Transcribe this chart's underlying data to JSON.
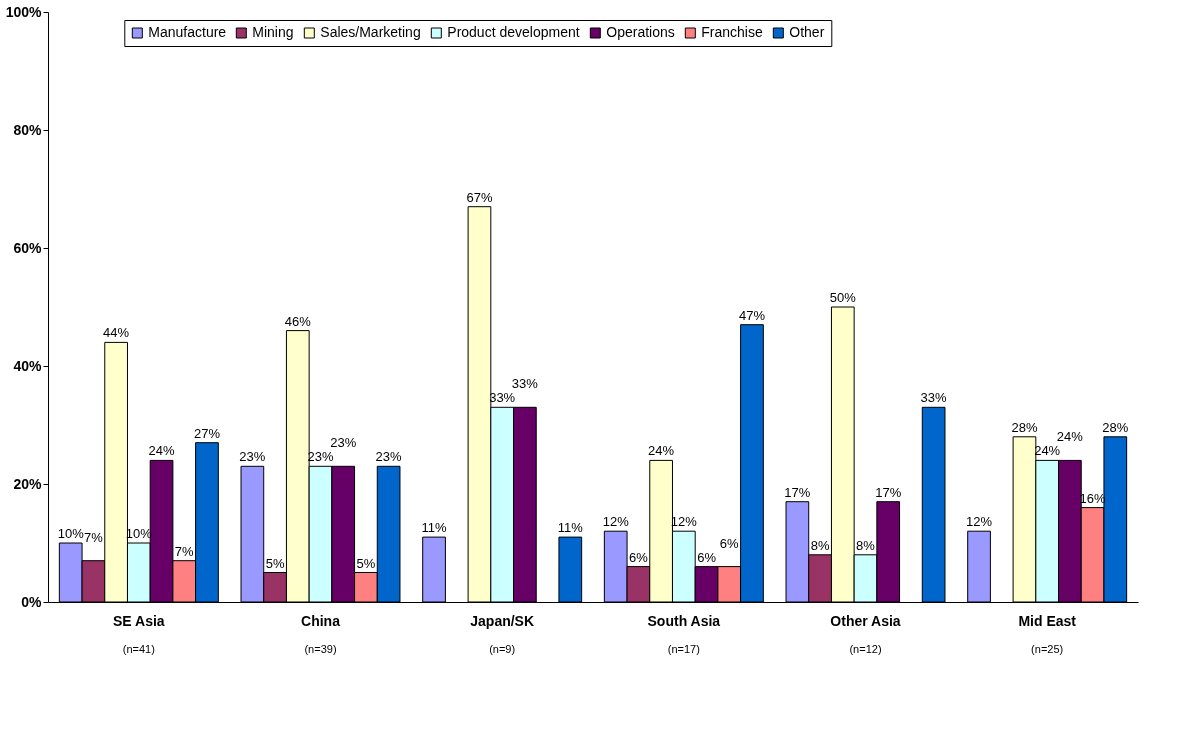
{
  "chart_data": {
    "type": "bar",
    "categories": [
      "SE Asia",
      "China",
      "Japan/SK",
      "South Asia",
      "Other Asia",
      "Mid East"
    ],
    "series": [
      {
        "name": "Manufacture",
        "color": "#9999ff",
        "values": [
          10,
          23,
          11,
          12,
          17,
          12
        ],
        "value_labels": [
          "10%",
          "23%",
          "11%",
          "12%",
          "17%",
          "12%"
        ]
      },
      {
        "name": "Mining",
        "color": "#993366",
        "values": [
          7,
          5,
          null,
          6,
          8,
          null
        ],
        "value_labels": [
          "7%",
          "5%",
          null,
          "6%",
          "8%",
          null
        ]
      },
      {
        "name": "Sales/Marketing",
        "color": "#ffffcc",
        "values": [
          44,
          46,
          67,
          24,
          50,
          28
        ],
        "value_labels": [
          "44%",
          "46%",
          "67%",
          "24%",
          "50%",
          "28%"
        ]
      },
      {
        "name": "Product development",
        "color": "#ccffff",
        "values": [
          10,
          23,
          33,
          12,
          8,
          24
        ],
        "value_labels": [
          "10%",
          "23%",
          "33%",
          "12%",
          "8%",
          "24%"
        ]
      },
      {
        "name": "Operations",
        "color": "#660066",
        "values": [
          24,
          23,
          33,
          6,
          17,
          24
        ],
        "value_labels": [
          "24%",
          "23%",
          "33%",
          "6%",
          "17%",
          "24%"
        ]
      },
      {
        "name": "Franchise",
        "color": "#ff8080",
        "values": [
          7,
          5,
          null,
          6,
          null,
          16
        ],
        "value_labels": [
          "7%",
          "5%",
          null,
          "6%",
          null,
          "16%"
        ]
      },
      {
        "name": "Other",
        "color": "#0066cc",
        "values": [
          27,
          23,
          11,
          47,
          33,
          28
        ],
        "value_labels": [
          "27%",
          "23%",
          "11%",
          "47%",
          "33%",
          "28%"
        ]
      }
    ],
    "ylim": [
      0,
      100
    ],
    "yticks": [
      {
        "value": 0,
        "label": "0%"
      },
      {
        "value": 20,
        "label": "20%"
      },
      {
        "value": 40,
        "label": "40%"
      },
      {
        "value": 60,
        "label": "60%"
      },
      {
        "value": 80,
        "label": "80%"
      },
      {
        "value": 100,
        "label": "100%"
      }
    ],
    "annotations": [
      "(n=41)",
      "(n=39)",
      "(n=9)",
      "(n=17)",
      "(n=12)",
      "(n=25)"
    ],
    "grid": false,
    "legend": "top"
  }
}
